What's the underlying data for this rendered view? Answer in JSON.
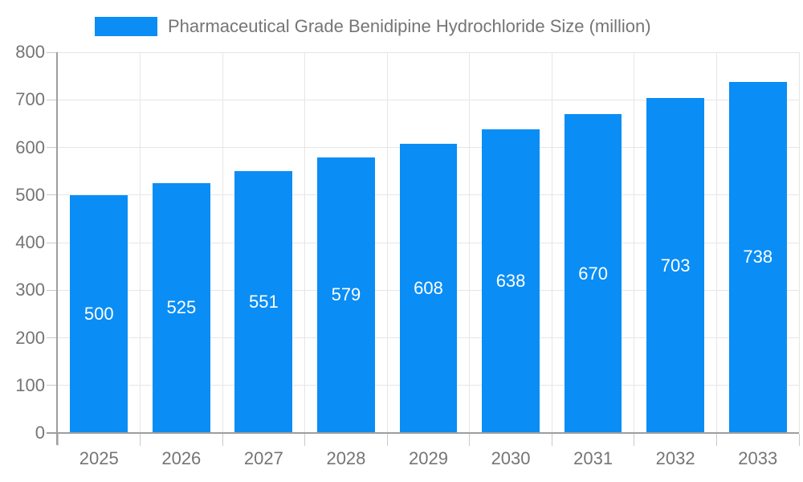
{
  "legend": {
    "label": "Pharmaceutical Grade Benidipine Hydrochloride Size (million)",
    "swatch_color": "#0a8df5"
  },
  "chart_data": {
    "type": "bar",
    "title": "Pharmaceutical Grade Benidipine Hydrochloride Size (million)",
    "categories": [
      "2025",
      "2026",
      "2027",
      "2028",
      "2029",
      "2030",
      "2031",
      "2032",
      "2033"
    ],
    "values": [
      500,
      525,
      551,
      579,
      608,
      638,
      670,
      703,
      738
    ],
    "xlabel": "",
    "ylabel": "",
    "ylim": [
      0,
      800
    ],
    "ytick_step": 100,
    "ytick_labels": [
      "0",
      "100",
      "200",
      "300",
      "400",
      "500",
      "600",
      "700",
      "800"
    ],
    "grid": true,
    "legend_position": "top-left",
    "bar_color": "#0a8df5",
    "bar_width_fraction": 0.7,
    "value_label_position": "inside-center",
    "value_label_color": "#ffffff",
    "text_color": "#757575",
    "axis_color": "#9e9e9e",
    "grid_color": "#e6e6e6"
  }
}
